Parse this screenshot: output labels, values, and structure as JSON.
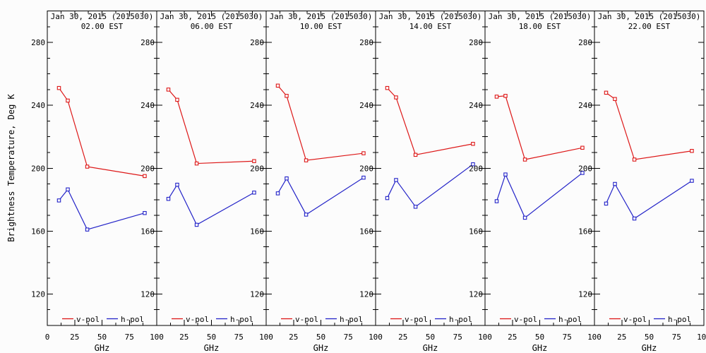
{
  "figure": {
    "background": "#fcfcfc",
    "axis_color": "#000000",
    "y_axis_title": "Brightness Temperature, Deg K",
    "x_axis_title": "GHz",
    "legend": {
      "v_label": "v-pol",
      "h_label": "h-pol"
    },
    "colors": {
      "v_pol": "#dd1717",
      "h_pol": "#2323c8"
    }
  },
  "chart_data": [
    {
      "type": "line",
      "title": "Jan 30, 2015 (2015030)",
      "subtitle": "02.00 EST",
      "xlabel": "GHz",
      "ylabel": "Brightness Temperature, Deg K",
      "xlim": [
        0,
        100
      ],
      "ylim": [
        100,
        300
      ],
      "xticks": [
        0,
        25,
        50,
        75,
        100
      ],
      "yticks": [
        120,
        160,
        200,
        240,
        280
      ],
      "x": [
        10.65,
        18.7,
        36.5,
        89.0
      ],
      "series": [
        {
          "name": "v-pol",
          "color": "#dd1717",
          "values": [
            251,
            243,
            201,
            195
          ]
        },
        {
          "name": "h-pol",
          "color": "#2323c8",
          "values": [
            179.5,
            186.5,
            161,
            171.5
          ]
        }
      ]
    },
    {
      "type": "line",
      "title": "Jan 30, 2015 (2015030)",
      "subtitle": "06.00 EST",
      "xlabel": "GHz",
      "ylabel": "Brightness Temperature, Deg K",
      "xlim": [
        0,
        100
      ],
      "ylim": [
        100,
        300
      ],
      "xticks": [
        0,
        25,
        50,
        75,
        100
      ],
      "yticks": [
        120,
        160,
        200,
        240,
        280
      ],
      "x": [
        10.65,
        18.7,
        36.5,
        89.0
      ],
      "series": [
        {
          "name": "v-pol",
          "color": "#dd1717",
          "values": [
            250,
            243.5,
            203,
            204.5
          ]
        },
        {
          "name": "h-pol",
          "color": "#2323c8",
          "values": [
            180.5,
            189.5,
            164,
            184.5
          ]
        }
      ]
    },
    {
      "type": "line",
      "title": "Jan 30, 2015 (2015030)",
      "subtitle": "10.00 EST",
      "xlabel": "GHz",
      "ylabel": "Brightness Temperature, Deg K",
      "xlim": [
        0,
        100
      ],
      "ylim": [
        100,
        300
      ],
      "xticks": [
        0,
        25,
        50,
        75,
        100
      ],
      "yticks": [
        120,
        160,
        200,
        240,
        280
      ],
      "x": [
        10.65,
        18.7,
        36.5,
        89.0
      ],
      "series": [
        {
          "name": "v-pol",
          "color": "#dd1717",
          "values": [
            252.5,
            246,
            205,
            209.5
          ]
        },
        {
          "name": "h-pol",
          "color": "#2323c8",
          "values": [
            184,
            193.5,
            170.5,
            194
          ]
        }
      ]
    },
    {
      "type": "line",
      "title": "Jan 30, 2015 (2015030)",
      "subtitle": "14.00 EST",
      "xlabel": "GHz",
      "ylabel": "Brightness Temperature, Deg K",
      "xlim": [
        0,
        100
      ],
      "ylim": [
        100,
        300
      ],
      "xticks": [
        0,
        25,
        50,
        75,
        100
      ],
      "yticks": [
        120,
        160,
        200,
        240,
        280
      ],
      "x": [
        10.65,
        18.7,
        36.5,
        89.0
      ],
      "series": [
        {
          "name": "v-pol",
          "color": "#dd1717",
          "values": [
            251,
            245,
            208.5,
            215.5
          ]
        },
        {
          "name": "h-pol",
          "color": "#2323c8",
          "values": [
            181,
            192.5,
            175.5,
            202.5
          ]
        }
      ]
    },
    {
      "type": "line",
      "title": "Jan 30, 2015 (2015030)",
      "subtitle": "18.00 EST",
      "xlabel": "GHz",
      "ylabel": "Brightness Temperature, Deg K",
      "xlim": [
        0,
        100
      ],
      "ylim": [
        100,
        300
      ],
      "xticks": [
        0,
        25,
        50,
        75,
        100
      ],
      "yticks": [
        120,
        160,
        200,
        240,
        280
      ],
      "x": [
        10.65,
        18.7,
        36.5,
        89.0
      ],
      "series": [
        {
          "name": "v-pol",
          "color": "#dd1717",
          "values": [
            245.5,
            246,
            205.5,
            213
          ]
        },
        {
          "name": "h-pol",
          "color": "#2323c8",
          "values": [
            179,
            196,
            168.5,
            197
          ]
        }
      ]
    },
    {
      "type": "line",
      "title": "Jan 30, 2015 (2015030)",
      "subtitle": "22.00 EST",
      "xlabel": "GHz",
      "ylabel": "Brightness Temperature, Deg K",
      "xlim": [
        0,
        100
      ],
      "ylim": [
        100,
        300
      ],
      "xticks": [
        0,
        25,
        50,
        75,
        100
      ],
      "yticks": [
        120,
        160,
        200,
        240,
        280
      ],
      "x": [
        10.65,
        18.7,
        36.5,
        89.0
      ],
      "series": [
        {
          "name": "v-pol",
          "color": "#dd1717",
          "values": [
            248,
            244,
            205.5,
            211
          ]
        },
        {
          "name": "h-pol",
          "color": "#2323c8",
          "values": [
            177.5,
            190,
            168,
            192
          ]
        }
      ]
    }
  ]
}
